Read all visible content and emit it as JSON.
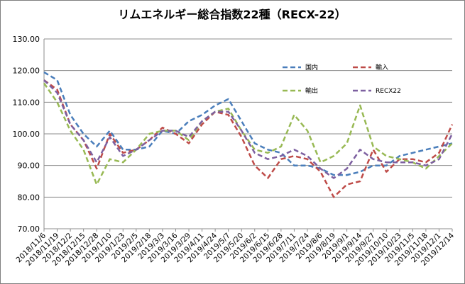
{
  "chart_data": {
    "type": "line",
    "title": "リムエネルギー総合指数22種（RECX-22）",
    "ylim": [
      70,
      130
    ],
    "yticks": [
      "70.00",
      "80.00",
      "90.00",
      "100.00",
      "110.00",
      "120.00",
      "130.00"
    ],
    "grid": true,
    "legend_position": "inside-top-right",
    "categories": [
      "2018/11/6",
      "2018/11/19",
      "2018/12/2",
      "2018/12/15",
      "2018/12/28",
      "2019/1/10",
      "2019/1/23",
      "2019/2/5",
      "2019/2/18",
      "2019/3/3",
      "2019/3/16",
      "2019/3/29",
      "2019/4/11",
      "2019/4/24",
      "2019/5/7",
      "2019/5/20",
      "2019/6/2",
      "2019/6/15",
      "2019/6/28",
      "2019/7/11",
      "2019/7/24",
      "2019/8/6",
      "2019/8/19",
      "2019/9/1",
      "2019/9/14",
      "2019/9/27",
      "2019/10/10",
      "2019/10/23",
      "2019/11/5",
      "2019/11/18",
      "2019/12/1",
      "2019/12/14"
    ],
    "series": [
      {
        "name": "国内",
        "color": "#4a7ebb",
        "values": [
          119.5,
          117,
          106,
          100,
          96,
          101,
          95,
          95,
          96,
          101,
          100,
          104,
          106,
          109,
          111,
          104,
          97,
          95,
          94,
          90,
          90,
          89,
          87,
          87,
          88,
          90,
          90,
          93,
          94,
          95,
          96,
          97
        ]
      },
      {
        "name": "輸入",
        "color": "#be4b48",
        "values": [
          117,
          114,
          103,
          98,
          89,
          100,
          94,
          95,
          98,
          102,
          100,
          97,
          103,
          107,
          106,
          99,
          90,
          86,
          92,
          93,
          92,
          88,
          80,
          84,
          85,
          95,
          88,
          92,
          92,
          91,
          94,
          103
        ]
      },
      {
        "name": "輸出",
        "color": "#98b954",
        "values": [
          116,
          110,
          101,
          95,
          84,
          92,
          91,
          95,
          100,
          101,
          101,
          98,
          104,
          107,
          108,
          101,
          95,
          94,
          96,
          106,
          101,
          91,
          93,
          97,
          109,
          96,
          93,
          92,
          91,
          89,
          93,
          97
        ]
      },
      {
        "name": "RECX22",
        "color": "#7d60a0",
        "values": [
          117,
          113,
          103,
          98,
          91,
          99,
          93,
          95,
          98,
          101,
          101,
          99,
          104,
          107,
          107,
          101,
          94,
          92,
          93,
          95,
          93,
          89,
          86,
          89,
          95,
          92,
          91,
          91,
          91,
          90,
          92,
          100
        ]
      }
    ]
  }
}
